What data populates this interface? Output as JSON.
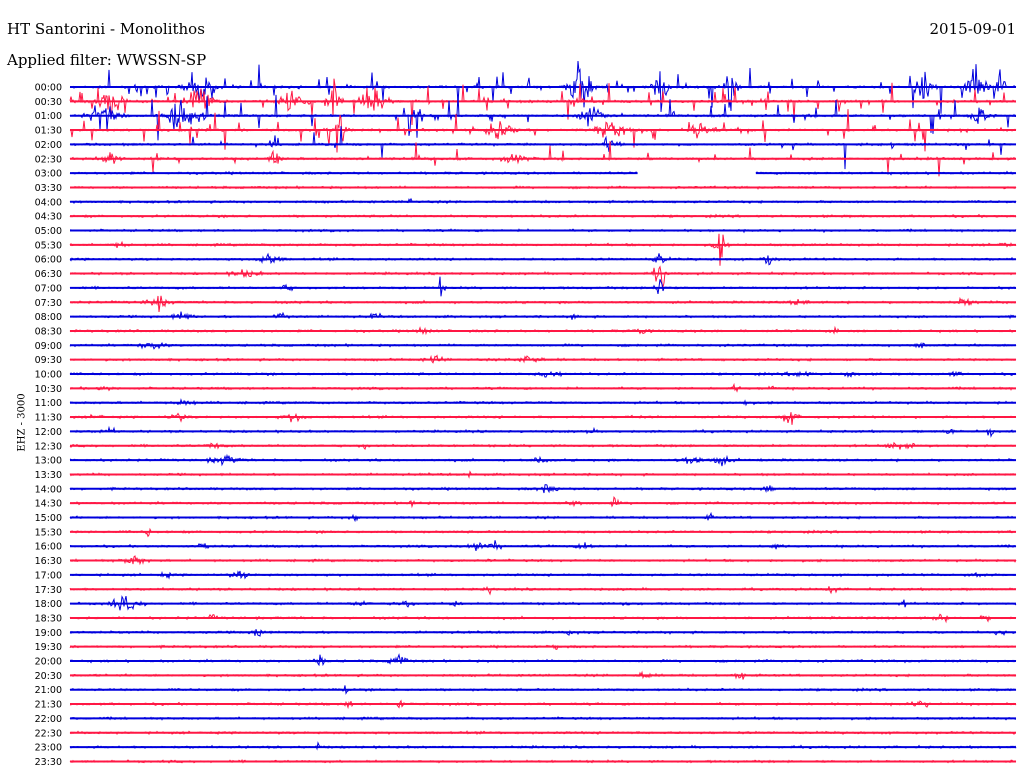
{
  "header": {
    "title": "HT Santorini - Monolithos",
    "date": "2015-09-01",
    "filter_label": "Applied filter:",
    "filter_value": "WWSSN-SP"
  },
  "station_label": "EHZ - 3000",
  "colors": {
    "even_trace": "#0000dd",
    "odd_trace": "#ff1744",
    "background": "#ffffff"
  },
  "chart_data": {
    "type": "line",
    "title": "HT Santorini - Monolithos",
    "subtitle": "Applied filter: WWSSN-SP",
    "ylabel": "EHZ - 3000",
    "rows": [
      "00:00",
      "00:30",
      "01:00",
      "01:30",
      "02:00",
      "02:30",
      "03:00",
      "03:30",
      "04:00",
      "04:30",
      "05:00",
      "05:30",
      "06:00",
      "06:30",
      "07:00",
      "07:30",
      "08:00",
      "08:30",
      "09:00",
      "09:30",
      "10:00",
      "10:30",
      "11:00",
      "11:30",
      "12:00",
      "12:30",
      "13:00",
      "13:30",
      "14:00",
      "14:30",
      "15:00",
      "15:30",
      "16:00",
      "16:30",
      "17:00",
      "17:30",
      "18:00",
      "18:30",
      "19:00",
      "19:30",
      "20:00",
      "20:30",
      "21:00",
      "21:30",
      "22:00",
      "22:30",
      "23:00",
      "23:30"
    ],
    "data_gap": {
      "row": "03:00",
      "x_fraction_start": 0.6,
      "x_fraction_end": 0.725
    },
    "grid": false
  }
}
